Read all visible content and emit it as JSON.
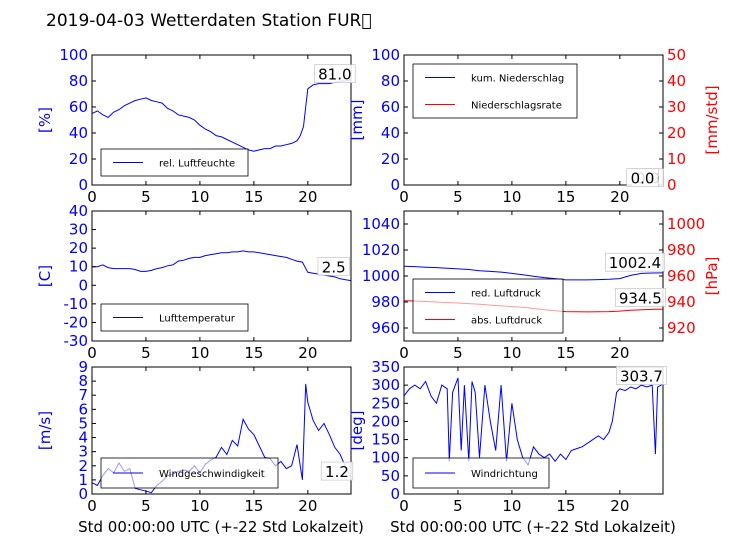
{
  "title": "2019-04-03 Wetterdaten Station FUR\u0000",
  "xlabel": "Std 00:00:00 UTC (+-22 Std Lokalzeit)",
  "colors": {
    "blue": "#0000ff",
    "red": "#ff0000",
    "black": "#000000"
  },
  "chart_data": [
    {
      "type": "line",
      "ylabel": "[%]",
      "xlim": [
        0,
        24
      ],
      "ylim": [
        0,
        100
      ],
      "xticks": [
        0,
        5,
        10,
        15,
        20
      ],
      "yticks": [
        0,
        20,
        40,
        60,
        80,
        100
      ],
      "legend": {
        "position": "lower-left",
        "entries": [
          "rel. Luftfeuchte"
        ]
      },
      "annotations": [
        {
          "text": "81.0",
          "x": 22.5,
          "y": 81
        }
      ],
      "series": [
        {
          "name": "rel. Luftfeuchte",
          "color": "#0000ff",
          "x": [
            0,
            0.5,
            1,
            1.5,
            2,
            2.5,
            3,
            3.5,
            4,
            4.5,
            5,
            5.5,
            6,
            6.5,
            7,
            7.5,
            8,
            8.5,
            9,
            9.5,
            10,
            10.5,
            11,
            11.5,
            12,
            12.5,
            13,
            13.5,
            14,
            14.5,
            15,
            15.5,
            16,
            16.5,
            17,
            17.5,
            18,
            18.5,
            19,
            19.3,
            19.6,
            19.8,
            20,
            20.5,
            21,
            21.5,
            22,
            22.5,
            23,
            23.5,
            24
          ],
          "y": [
            55,
            57,
            54,
            52,
            56,
            58,
            61,
            63,
            65,
            66,
            67,
            65,
            64,
            63,
            59,
            57,
            54,
            53,
            52,
            50,
            46,
            43,
            41,
            38,
            37,
            35,
            33,
            31,
            29,
            27,
            26,
            27,
            28,
            28,
            30,
            30,
            31,
            32,
            34,
            38,
            45,
            60,
            74,
            77,
            78,
            78,
            78,
            79,
            80,
            80,
            81
          ]
        }
      ]
    },
    {
      "type": "line",
      "ylabel": "[mm]",
      "ylabel_right": "[mm/std]",
      "xlim": [
        0,
        24
      ],
      "ylim": [
        0,
        100
      ],
      "ylim_right": [
        0,
        50
      ],
      "xticks": [
        0,
        5,
        10,
        15,
        20
      ],
      "yticks": [
        0,
        20,
        40,
        60,
        80,
        100
      ],
      "yticks_right": [
        0,
        10,
        20,
        30,
        40,
        50
      ],
      "legend": {
        "position": "upper-left",
        "entries": [
          "kum. Niederschlag",
          "Niederschlagsrate"
        ]
      },
      "annotations": [
        {
          "text": "0.0",
          "x": 22.6,
          "y": 1
        },
        {
          "text": "0.0",
          "x": 22.1,
          "y": 1
        }
      ],
      "series": [
        {
          "name": "kum. Niederschlag",
          "color": "#0000ff",
          "x": [
            0,
            24
          ],
          "y": [
            0,
            0
          ]
        },
        {
          "name": "Niederschlagsrate",
          "color": "#ff0000",
          "axis": "right",
          "x": [
            0,
            24
          ],
          "y": [
            0,
            0
          ]
        }
      ]
    },
    {
      "type": "line",
      "ylabel": "[C]",
      "xlim": [
        0,
        24
      ],
      "ylim": [
        -30,
        40
      ],
      "xticks": [
        0,
        5,
        10,
        15,
        20
      ],
      "yticks": [
        -30,
        -20,
        -10,
        0,
        10,
        20,
        30,
        40
      ],
      "legend": {
        "position": "lower-left",
        "entries": [
          "Lufttemperatur"
        ]
      },
      "annotations": [
        {
          "text": "2.5",
          "x": 22.4,
          "y": 7
        }
      ],
      "series": [
        {
          "name": "Lufttemperatur",
          "color": "#0000ff",
          "x": [
            0,
            0.5,
            1,
            1.5,
            2,
            2.5,
            3,
            3.5,
            4,
            4.5,
            5,
            5.5,
            6,
            6.5,
            7,
            7.5,
            8,
            8.5,
            9,
            9.5,
            10,
            10.5,
            11,
            11.5,
            12,
            12.5,
            13,
            13.5,
            14,
            14.5,
            15,
            15.5,
            16,
            16.5,
            17,
            17.5,
            18,
            18.5,
            19,
            19.5,
            20,
            20.5,
            21,
            21.5,
            22,
            22.5,
            23,
            23.5,
            24
          ],
          "y": [
            10,
            10,
            11,
            9.5,
            9,
            9,
            9,
            9,
            8.5,
            7.5,
            7.5,
            8,
            9,
            9.5,
            10.5,
            11,
            13,
            13.5,
            14.5,
            15,
            15,
            16,
            16.5,
            17,
            17.5,
            17.5,
            18,
            18,
            18.5,
            18,
            18,
            17.5,
            17,
            16.5,
            16,
            15.5,
            15,
            14,
            13,
            12.5,
            7,
            6.5,
            6,
            5.5,
            5,
            4.5,
            3.5,
            3,
            2.5
          ]
        }
      ]
    },
    {
      "type": "line",
      "ylabel_right": "[hPa]",
      "xlim": [
        0,
        24
      ],
      "ylim": [
        950,
        1050
      ],
      "ylim_right": [
        910,
        1010
      ],
      "xticks": [
        0,
        5,
        10,
        15,
        20
      ],
      "yticks": [
        960,
        980,
        1000,
        1020,
        1040
      ],
      "yticks_right": [
        920,
        940,
        960,
        980,
        1000
      ],
      "legend": {
        "position": "lower-left",
        "entries": [
          "red. Luftdruck",
          "abs. Luftdruck"
        ]
      },
      "annotations": [
        {
          "text": "1002.4",
          "x": 21.4,
          "y": 1006
        },
        {
          "text": "934.5",
          "x": 21.9,
          "y": 979
        }
      ],
      "series": [
        {
          "name": "red. Luftdruck",
          "color": "#0000ff",
          "x": [
            0,
            1,
            2,
            3,
            4,
            5,
            6,
            7,
            8,
            9,
            10,
            11,
            12,
            13,
            14,
            15,
            16,
            17,
            18,
            19,
            20,
            21,
            22,
            23,
            24
          ],
          "y": [
            1007.5,
            1007.2,
            1006.8,
            1006.5,
            1006,
            1005.5,
            1005,
            1004,
            1003.5,
            1003,
            1002,
            1001,
            999.8,
            998.8,
            998,
            997,
            997,
            997,
            997.2,
            997.5,
            998,
            1000.5,
            1002,
            1002.3,
            1002.4
          ]
        },
        {
          "name": "abs. Luftdruck",
          "color": "#ff0000",
          "axis": "right",
          "x": [
            0,
            1,
            2,
            3,
            4,
            5,
            6,
            7,
            8,
            9,
            10,
            11,
            12,
            13,
            14,
            15,
            16,
            17,
            18,
            19,
            20,
            21,
            22,
            23,
            24
          ],
          "y": [
            941,
            940.8,
            940.4,
            940,
            939.5,
            939.2,
            938.8,
            938.2,
            937.6,
            937,
            936.5,
            936,
            935,
            934,
            933.2,
            932.6,
            932.5,
            932.4,
            932.5,
            932.6,
            933,
            933.6,
            934,
            934.3,
            934.5
          ]
        }
      ]
    },
    {
      "type": "line",
      "ylabel": "[m/s]",
      "xlim": [
        0,
        24
      ],
      "ylim": [
        0,
        9
      ],
      "xticks": [
        0,
        5,
        10,
        15,
        20
      ],
      "yticks": [
        0,
        1,
        2,
        3,
        4,
        5,
        6,
        7,
        8,
        9
      ],
      "legend": {
        "position": "lower-left",
        "entries": [
          "Windgeschwindigkeit"
        ]
      },
      "annotations": [
        {
          "text": "1.2",
          "x": 22.7,
          "y": 1.2
        }
      ],
      "series": [
        {
          "name": "Windgeschwindigkeit",
          "color": "#0000ff",
          "x": [
            0,
            0.5,
            1,
            1.5,
            2,
            2.5,
            3,
            3.5,
            4,
            4.5,
            5,
            5.5,
            6,
            6.5,
            7,
            7.5,
            8,
            8.5,
            9,
            9.5,
            10,
            10.5,
            11,
            11.5,
            12,
            12.5,
            13,
            13.5,
            14,
            14.5,
            15,
            15.5,
            16,
            16.5,
            17,
            17.5,
            18,
            18.5,
            19,
            19.5,
            19.8,
            20,
            20.5,
            21,
            21.5,
            22,
            22.5,
            23,
            23.5,
            24
          ],
          "y": [
            0.8,
            0.6,
            1.3,
            1.8,
            1.5,
            2.2,
            1.6,
            1.8,
            0.4,
            0.3,
            0.2,
            0.1,
            0.6,
            0.9,
            1.3,
            1.4,
            1.6,
            1.7,
            1.6,
            2.0,
            1.5,
            2.1,
            2.4,
            2.6,
            3.3,
            2.8,
            3.8,
            3.4,
            5.3,
            4.6,
            4.2,
            3.4,
            2.6,
            2.5,
            2.0,
            2.3,
            1.8,
            2.0,
            3.5,
            1.0,
            7.8,
            6.5,
            5.2,
            4.5,
            5.0,
            4.2,
            3.3,
            2.8,
            1.9,
            1.2
          ]
        }
      ]
    },
    {
      "type": "line",
      "ylabel": "[deg]",
      "xlim": [
        0,
        24
      ],
      "ylim": [
        0,
        350
      ],
      "xticks": [
        0,
        5,
        10,
        15,
        20
      ],
      "yticks": [
        0,
        50,
        100,
        150,
        200,
        250,
        300,
        350
      ],
      "legend": {
        "position": "lower-left",
        "entries": [
          "Windrichtung"
        ]
      },
      "annotations": [
        {
          "text": "303.7",
          "x": 22.0,
          "y": 310
        }
      ],
      "series": [
        {
          "name": "Windrichtung",
          "color": "#0000ff",
          "x": [
            0,
            0.5,
            1,
            1.5,
            2,
            2.5,
            3,
            3.5,
            4,
            4.2,
            4.5,
            5,
            5.3,
            5.6,
            6,
            6.3,
            6.6,
            7,
            7.5,
            8,
            8.5,
            9,
            9.5,
            10,
            10.5,
            11,
            11.5,
            12,
            12.5,
            13,
            13.5,
            14,
            14.5,
            15,
            15.5,
            16,
            16.5,
            17,
            17.5,
            18,
            18.5,
            19,
            19.3,
            19.7,
            20,
            20.5,
            21,
            21.5,
            22,
            22.5,
            23,
            23.3,
            23.5,
            24
          ],
          "y": [
            270,
            290,
            300,
            290,
            310,
            270,
            250,
            300,
            290,
            90,
            280,
            320,
            120,
            300,
            90,
            310,
            280,
            100,
            300,
            200,
            120,
            300,
            90,
            250,
            150,
            100,
            80,
            130,
            110,
            100,
            110,
            90,
            110,
            95,
            120,
            125,
            130,
            140,
            150,
            160,
            150,
            170,
            200,
            280,
            290,
            285,
            295,
            290,
            300,
            295,
            300,
            110,
            295,
            303
          ]
        }
      ]
    }
  ]
}
